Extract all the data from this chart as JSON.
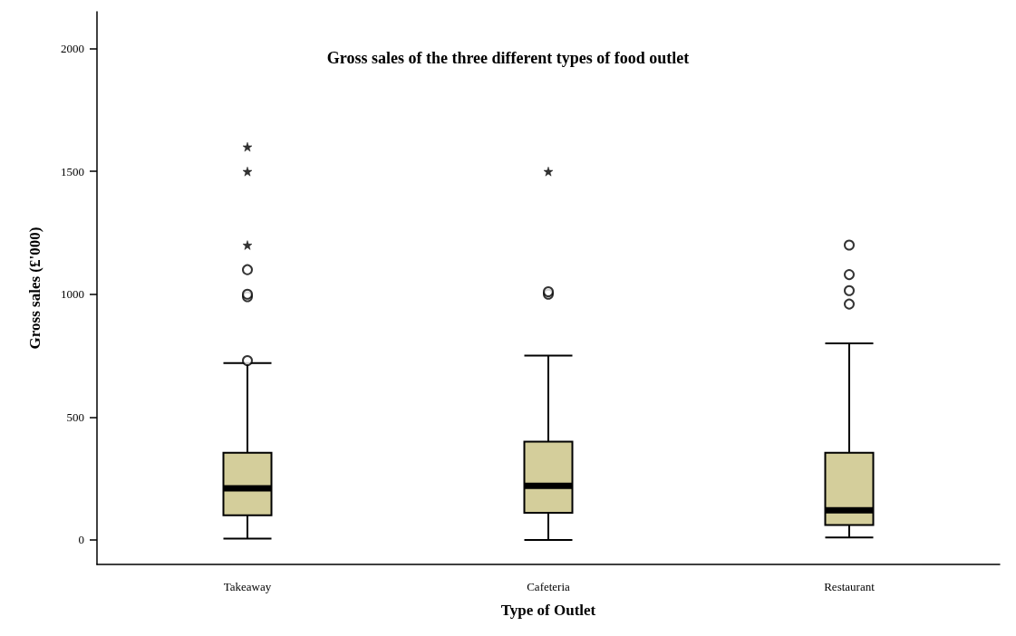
{
  "chart_data": {
    "type": "box",
    "title": "Gross sales of the three different types of food outlet",
    "xlabel": "Type of Outlet",
    "ylabel": "Gross sales (£'000)",
    "categories": [
      "Takeaway",
      "Cafeteria",
      "Restaurant"
    ],
    "ylim": [
      -100,
      2150
    ],
    "yticks": [
      0,
      500,
      1000,
      1500,
      2000
    ],
    "series": [
      {
        "color": "#d4ce9b",
        "marker": "circle",
        "boxes": [
          {
            "low": 5,
            "q1": 100,
            "median": 210,
            "q3": 355,
            "high": 720,
            "outliers": [
              730,
              990,
              1000,
              1100
            ]
          },
          {
            "low": 0,
            "q1": 110,
            "median": 220,
            "q3": 400,
            "high": 750,
            "outliers": [
              1000,
              1010
            ]
          },
          {
            "low": 10,
            "q1": 60,
            "median": 120,
            "q3": 355,
            "high": 800,
            "outliers": [
              960,
              1015,
              1080,
              1200
            ]
          }
        ]
      },
      {
        "type": "scatter",
        "color": "#000000",
        "marker": "star",
        "x": [
          "Takeaway",
          "Takeaway",
          "Takeaway",
          "Cafeteria"
        ],
        "values": [
          1200,
          1500,
          1600,
          1500
        ]
      }
    ]
  }
}
